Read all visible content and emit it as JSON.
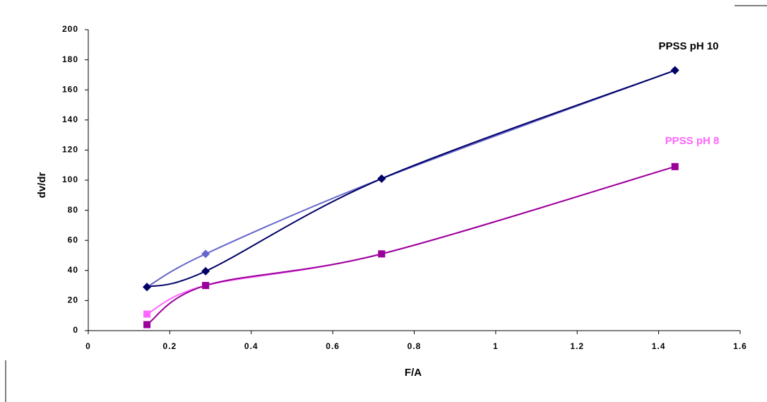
{
  "chart_data": {
    "type": "line",
    "x_label": "F/A",
    "y_label": "dv/dr",
    "annotations": [
      "PPSS pH 10",
      "PPSS pH 8"
    ],
    "xlim": [
      0,
      1.6
    ],
    "xticks": [
      0,
      0.2,
      0.4,
      0.6,
      0.8,
      1,
      1.2,
      1.4,
      1.6
    ],
    "ylim": [
      0,
      200
    ],
    "yticks": [
      0,
      20,
      40,
      60,
      80,
      100,
      120,
      140,
      160,
      180,
      200
    ],
    "grid": false,
    "series": [
      {
        "color": "#6666cc",
        "marker": "diamond",
        "x": [
          0.144,
          0.288,
          0.72,
          1.44
        ],
        "values": [
          29,
          51,
          101,
          173
        ]
      },
      {
        "color": "#000066",
        "marker": "diamond",
        "x": [
          0.144,
          0.288,
          0.72,
          1.44
        ],
        "values": [
          29,
          39.5,
          101,
          173
        ]
      },
      {
        "color": "#ff66ff",
        "marker": "square",
        "x": [
          0.144,
          0.288,
          0.72,
          1.44
        ],
        "values": [
          11,
          30,
          51,
          109
        ]
      },
      {
        "color": "#990099",
        "marker": "square",
        "x": [
          0.144,
          0.288,
          0.72,
          1.44
        ],
        "values": [
          4,
          30,
          51,
          109
        ]
      }
    ]
  }
}
